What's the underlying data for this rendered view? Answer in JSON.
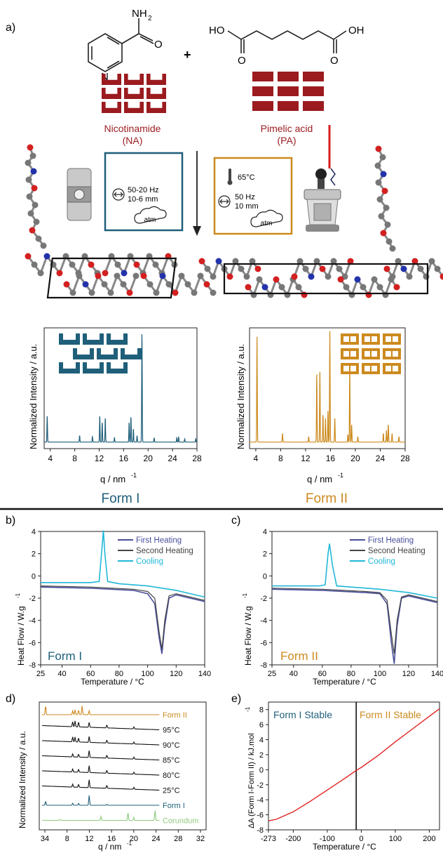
{
  "panel_labels": {
    "a": "a)",
    "b": "b)",
    "c": "c)",
    "d": "d)",
    "e": "e)"
  },
  "colors": {
    "form1": "#1f5f7a",
    "form2": "#cc8a1e",
    "brick": "#9b1b1f",
    "cyan": "#22b7d8",
    "heat1": "#4b4f9a",
    "heat2": "#444444",
    "green": "#8fc97d",
    "red": "#e02020"
  },
  "reactants": {
    "plus": "+",
    "na_amine": "NH",
    "na_amine_sub": "2",
    "na_o": "O",
    "na_n": "N",
    "pa_ho": "HO",
    "pa_oh": "OH",
    "pa_o1": "O",
    "pa_o2": "O",
    "na_name": "Nicotinamide",
    "na_abbr": "(NA)",
    "pa_name": "Pimelic acid",
    "pa_abbr": "(PA)"
  },
  "conditions": {
    "left": {
      "freq": "50-20 Hz",
      "amp": "10-6 mm",
      "atm": "atm"
    },
    "right": {
      "temp": "65°C",
      "freq": "50 Hz",
      "amp": "10 mm",
      "atm": "atm"
    }
  },
  "xrd_axes": {
    "ylabel": "Normalized Intensity / a.u.",
    "xlabel": "q / nm",
    "xlabel_sup": "-1",
    "ticks": [
      "4",
      "8",
      "12",
      "16",
      "20",
      "24",
      "28"
    ]
  },
  "forms": {
    "form1": "Form I",
    "form2": "Form II"
  },
  "dsc_axes": {
    "ylabel": "Heat Flow / W.g",
    "ylabel_sup": "-1",
    "xlabel": "Temperature / °C",
    "xticks": [
      "25",
      "40",
      "60",
      "80",
      "100",
      "120",
      "140"
    ],
    "yticks": [
      "4",
      "2",
      "0",
      "-2",
      "-4",
      "-6",
      "-8"
    ]
  },
  "dsc_legend": {
    "first": "First Heating",
    "second": "Second Heating",
    "cool": "Cooling"
  },
  "panel_d": {
    "ylabel": "Normalized Intensity / a.u.",
    "xlabel": "q / nm",
    "xlabel_sup": "-1",
    "ticks": [
      "34",
      "8",
      "12",
      "16",
      "20",
      "24",
      "28",
      "32"
    ],
    "labels": [
      "Form II",
      "95°C",
      "90°C",
      "85°C",
      "80°C",
      "25°C",
      "Form I",
      "Corundum"
    ]
  },
  "panel_e": {
    "ylabel": "ΔA (Form I-Form II) / kJ.mol",
    "ylabel_sup": "-1",
    "xlabel": "Temperature / °C",
    "xticks": [
      "-273",
      "-200",
      "-100",
      "0",
      "100",
      "200"
    ],
    "yticks": [
      "8",
      "6",
      "4",
      "2",
      "0",
      "-2",
      "-4",
      "-6",
      "-8"
    ],
    "left_region": "Form I Stable",
    "right_region": "Form II Stable"
  },
  "chart_data": [
    {
      "type": "line",
      "panel": "a-form1",
      "title": "",
      "xlabel": "q / nm-1",
      "ylabel": "Normalized Intensity / a.u.",
      "xlim": [
        3,
        28
      ],
      "series": [
        {
          "name": "",
          "peaks_x": [
            3.5,
            8.8,
            10.9,
            12.1,
            12.5,
            13.0,
            14.5,
            16.9,
            17.2,
            17.6,
            18.2,
            19.0,
            21.0,
            24.7,
            25.0,
            26.0,
            27.8
          ],
          "peaks_y": [
            0.24,
            0.06,
            0.05,
            0.24,
            0.18,
            0.22,
            0.04,
            0.18,
            0.23,
            0.12,
            0.06,
            1.0,
            0.04,
            0.04,
            0.05,
            0.03,
            0.03
          ]
        }
      ]
    },
    {
      "type": "line",
      "panel": "a-form2",
      "title": "",
      "xlabel": "q / nm-1",
      "ylabel": "Normalized Intensity / a.u.",
      "xlim": [
        3,
        28
      ],
      "series": [
        {
          "name": "",
          "peaks_x": [
            4.2,
            8.3,
            12.5,
            13.8,
            14.3,
            14.8,
            15.2,
            15.6,
            15.9,
            16.7,
            18.8,
            19.1,
            19.4,
            20.4,
            24.5,
            25.0,
            25.3,
            25.9,
            27.0
          ],
          "peaks_y": [
            0.95,
            0.08,
            0.05,
            0.61,
            0.65,
            0.25,
            0.22,
            0.28,
            1.0,
            0.22,
            0.07,
            0.68,
            0.16,
            0.05,
            0.08,
            0.11,
            0.16,
            0.08,
            0.05
          ]
        }
      ]
    },
    {
      "type": "line",
      "panel": "b",
      "title": "",
      "xlabel": "Temperature / °C",
      "ylabel": "Heat Flow / W.g-1",
      "xlim": [
        25,
        140
      ],
      "ylim": [
        -8,
        4
      ],
      "series": [
        {
          "name": "First Heating",
          "x": [
            25,
            60,
            90,
            100,
            105,
            108,
            110,
            112,
            115,
            120,
            140
          ],
          "y": [
            -1.0,
            -1.1,
            -1.3,
            -1.6,
            -2.5,
            -5.5,
            -7.0,
            -4.5,
            -2.0,
            -1.7,
            -2.3
          ]
        },
        {
          "name": "Second Heating",
          "x": [
            25,
            60,
            90,
            100,
            105,
            108,
            110,
            112,
            115,
            120,
            140
          ],
          "y": [
            -0.9,
            -1.0,
            -1.2,
            -1.4,
            -2.0,
            -5.0,
            -6.6,
            -4.0,
            -1.8,
            -1.6,
            -2.2
          ]
        },
        {
          "name": "Cooling",
          "x": [
            140,
            120,
            100,
            80,
            72,
            70,
            69,
            68,
            66,
            60,
            40,
            25
          ],
          "y": [
            -1.9,
            -1.3,
            -0.9,
            -0.7,
            -0.5,
            2.0,
            4.1,
            2.5,
            -0.5,
            -0.6,
            -0.6,
            -0.6
          ]
        }
      ]
    },
    {
      "type": "line",
      "panel": "c",
      "title": "",
      "xlabel": "Temperature / °C",
      "ylabel": "Heat Flow / W.g-1",
      "xlim": [
        25,
        140
      ],
      "ylim": [
        -8,
        4
      ],
      "series": [
        {
          "name": "First Heating",
          "x": [
            25,
            60,
            90,
            100,
            105,
            108,
            110,
            112,
            115,
            120,
            140
          ],
          "y": [
            -1.2,
            -1.3,
            -1.5,
            -1.6,
            -2.5,
            -6.0,
            -7.9,
            -4.5,
            -2.0,
            -1.8,
            -2.4
          ]
        },
        {
          "name": "Second Heating",
          "x": [
            25,
            60,
            90,
            100,
            105,
            108,
            110,
            112,
            115,
            120,
            140
          ],
          "y": [
            -1.1,
            -1.2,
            -1.4,
            -1.5,
            -2.2,
            -5.2,
            -7.0,
            -4.0,
            -1.9,
            -1.7,
            -2.3
          ]
        },
        {
          "name": "Cooling",
          "x": [
            140,
            120,
            100,
            80,
            70,
            67,
            65,
            64,
            62,
            58,
            40,
            25
          ],
          "y": [
            -2.0,
            -1.5,
            -1.2,
            -1.0,
            -0.9,
            1.0,
            2.9,
            2.0,
            -0.8,
            -0.9,
            -0.9,
            -0.9
          ]
        }
      ]
    },
    {
      "type": "line",
      "panel": "d",
      "title": "",
      "xlabel": "q / nm-1",
      "ylabel": "Normalized Intensity / a.u.",
      "series": [
        {
          "name": "Form II"
        },
        {
          "name": "95°C"
        },
        {
          "name": "90°C"
        },
        {
          "name": "85°C"
        },
        {
          "name": "80°C"
        },
        {
          "name": "25°C"
        },
        {
          "name": "Form I"
        },
        {
          "name": "Corundum"
        }
      ]
    },
    {
      "type": "line",
      "panel": "e",
      "title": "",
      "xlabel": "Temperature / °C",
      "ylabel": "ΔA (Form I-Form II) / kJ.mol-1",
      "xlim": [
        -273,
        230
      ],
      "ylim": [
        -8,
        9
      ],
      "series": [
        {
          "name": "",
          "x": [
            -273,
            -250,
            -200,
            -150,
            -100,
            -50,
            -15,
            0,
            50,
            100,
            150,
            200,
            230
          ],
          "y": [
            -6.8,
            -6.6,
            -5.6,
            -4.2,
            -2.7,
            -1.2,
            -0.1,
            0.3,
            1.9,
            3.7,
            5.4,
            7.1,
            8.1
          ]
        }
      ],
      "annotations": [
        {
          "x": -15,
          "label": "vertical transition line"
        }
      ]
    }
  ]
}
